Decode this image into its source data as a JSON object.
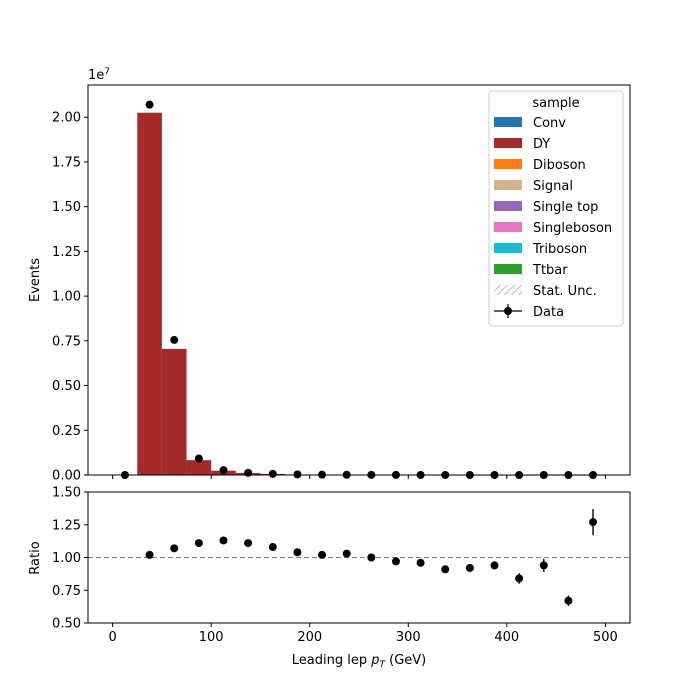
{
  "chart_data": [
    {
      "type": "bar",
      "subtype": "stacked-histogram-with-data-points",
      "xlabel": "Leading lep p_T (GeV)",
      "xlabel_main": "Leading lep ",
      "xlabel_sym": "p",
      "xlabel_sub": "T",
      "xlabel_unit": " (GeV)",
      "ylabel": "Events",
      "y_offset_label": "1e7",
      "y_offset_base": "1e",
      "y_offset_exp": "7",
      "xlim": [
        -25,
        525
      ],
      "ylim": [
        0,
        21800000
      ],
      "yticks": [
        0,
        2500000,
        5000000,
        7500000,
        10000000,
        12500000,
        15000000,
        17500000,
        20000000
      ],
      "ytick_labels": [
        "0.00",
        "0.25",
        "0.50",
        "0.75",
        "1.00",
        "1.25",
        "1.50",
        "1.75",
        "2.00"
      ],
      "bin_edges": [
        0,
        25,
        50,
        75,
        100,
        125,
        150,
        175,
        200,
        225,
        250,
        275,
        300,
        325,
        350,
        375,
        400,
        425,
        450,
        475,
        500
      ],
      "mc_stack": [
        {
          "name": "DY",
          "color": "#a52a2a",
          "values": [
            0,
            20250000,
            7050000,
            830000,
            240000,
            110000,
            60000,
            30000,
            18000,
            12000,
            8000,
            5000,
            3500,
            2500,
            1800,
            1300,
            1000,
            700,
            500,
            400
          ]
        }
      ],
      "data_points": {
        "name": "Data",
        "x": [
          12.5,
          37.5,
          62.5,
          87.5,
          112.5,
          137.5,
          162.5,
          187.5,
          212.5,
          237.5,
          262.5,
          287.5,
          312.5,
          337.5,
          362.5,
          387.5,
          412.5,
          437.5,
          462.5,
          487.5
        ],
        "y": [
          0,
          20700000,
          7550000,
          920000,
          270000,
          120000,
          65000,
          31000,
          18400,
          12400,
          8000,
          4900,
          3400,
          2300,
          1650,
          1230,
          850,
          660,
          340,
          510
        ]
      },
      "legend": {
        "title": "sample",
        "position": "top-right",
        "entries": [
          {
            "label": "Conv",
            "color": "#1f77b4",
            "kind": "patch"
          },
          {
            "label": "DY",
            "color": "#a52a2a",
            "kind": "patch"
          },
          {
            "label": "Diboson",
            "color": "#ff7f0e",
            "kind": "patch"
          },
          {
            "label": "Signal",
            "color": "#d2b48c",
            "kind": "patch"
          },
          {
            "label": "Single top",
            "color": "#9467bd",
            "kind": "patch"
          },
          {
            "label": "Singleboson",
            "color": "#e377c2",
            "kind": "patch"
          },
          {
            "label": "Triboson",
            "color": "#17becf",
            "kind": "patch"
          },
          {
            "label": "Ttbar",
            "color": "#2ca02c",
            "kind": "patch"
          },
          {
            "label": "Stat. Unc.",
            "color": "#888888",
            "kind": "hatch"
          },
          {
            "label": "Data",
            "color": "#000000",
            "kind": "errorbar"
          }
        ]
      }
    },
    {
      "type": "scatter",
      "subtype": "ratio-with-errorbars",
      "ylabel": "Ratio",
      "xlim": [
        -25,
        525
      ],
      "ylim": [
        0.5,
        1.5
      ],
      "yticks": [
        0.5,
        0.75,
        1.0,
        1.25,
        1.5
      ],
      "ytick_labels": [
        "0.50",
        "0.75",
        "1.00",
        "1.25",
        "1.50"
      ],
      "xticks": [
        0,
        100,
        200,
        300,
        400,
        500
      ],
      "xtick_labels": [
        "0",
        "100",
        "200",
        "300",
        "400",
        "500"
      ],
      "reference_line": 1.0,
      "points": {
        "x": [
          37.5,
          62.5,
          87.5,
          112.5,
          137.5,
          162.5,
          187.5,
          212.5,
          237.5,
          262.5,
          287.5,
          312.5,
          337.5,
          362.5,
          387.5,
          412.5,
          437.5,
          462.5,
          487.5
        ],
        "y": [
          1.02,
          1.07,
          1.11,
          1.13,
          1.11,
          1.08,
          1.04,
          1.02,
          1.03,
          1.0,
          0.97,
          0.96,
          0.91,
          0.92,
          0.94,
          0.84,
          0.94,
          0.67,
          1.27
        ],
        "err": [
          0.003,
          0.004,
          0.006,
          0.008,
          0.01,
          0.012,
          0.014,
          0.016,
          0.017,
          0.018,
          0.02,
          0.022,
          0.024,
          0.025,
          0.03,
          0.04,
          0.05,
          0.04,
          0.1
        ]
      }
    }
  ]
}
